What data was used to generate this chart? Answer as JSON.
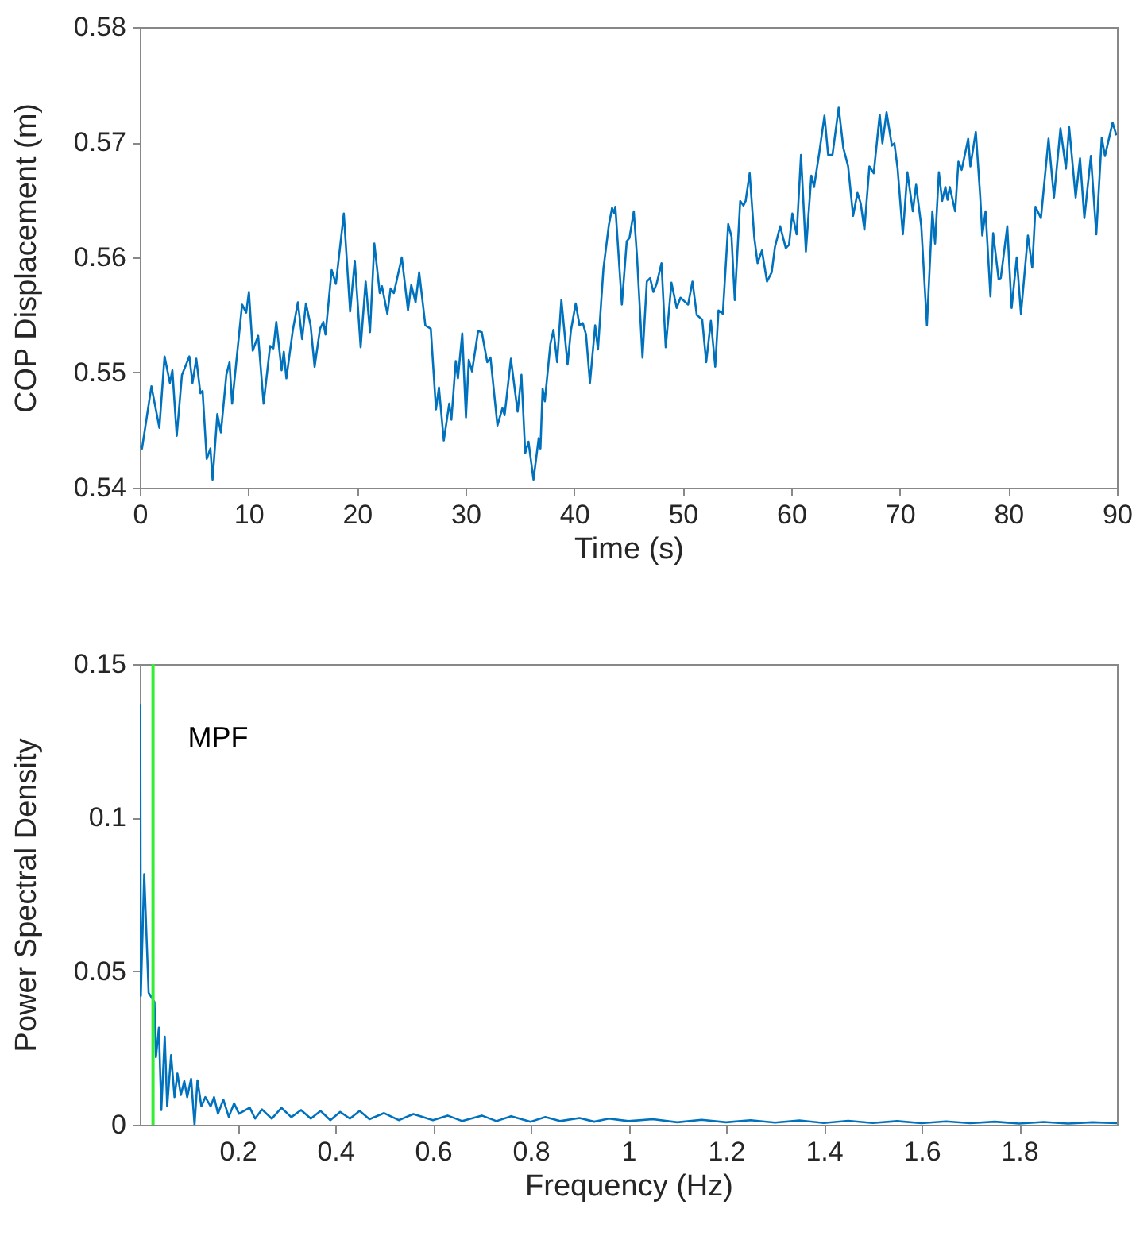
{
  "chart_data": [
    {
      "type": "line",
      "xlabel": "Time (s)",
      "ylabel": "COP Displacement (m)",
      "xlim": [
        0,
        90
      ],
      "ylim": [
        0.54,
        0.58
      ],
      "xticks": [
        0,
        10,
        20,
        30,
        40,
        50,
        60,
        70,
        80,
        90
      ],
      "yticks": [
        0.54,
        0.55,
        0.56,
        0.57,
        0.58
      ],
      "series": [
        {
          "color": "#0072bd",
          "x": [
            0.1,
            0.2,
            1.07,
            1.8,
            2.28,
            2.77,
            3.0,
            3.4,
            3.88,
            4.56,
            4.85,
            5.2,
            5.58,
            5.78,
            6.16,
            6.5,
            6.7,
            7.14,
            7.47,
            7.97,
            8.26,
            8.5,
            8.98,
            9.42,
            9.8,
            10.05,
            10.4,
            10.9,
            11.4,
            12.0,
            12.3,
            12.57,
            13.06,
            13.26,
            13.5,
            14.08,
            14.56,
            14.95,
            15.3,
            15.73,
            16.1,
            16.6,
            16.9,
            17.1,
            17.67,
            18.06,
            18.79,
            19.37,
            19.8,
            20.34,
            20.8,
            21.2,
            21.6,
            22.1,
            22.3,
            22.8,
            23.1,
            23.4,
            24.13,
            24.7,
            25.0,
            25.4,
            25.73,
            26.3,
            26.8,
            27.28,
            27.55,
            28.0,
            28.5,
            28.7,
            29.1,
            29.3,
            29.7,
            30.04,
            30.3,
            30.6,
            31.16,
            31.5,
            32.0,
            32.3,
            32.94,
            33.4,
            33.6,
            34.18,
            34.8,
            35.15,
            35.5,
            35.8,
            36.26,
            36.74,
            36.9,
            37.1,
            37.3,
            37.82,
            38.1,
            38.44,
            38.83,
            39.4,
            39.7,
            40.15,
            40.5,
            40.8,
            41.1,
            41.46,
            41.94,
            42.2,
            42.7,
            43.2,
            43.5,
            43.7,
            43.8,
            44.4,
            44.85,
            45.1,
            45.5,
            45.8,
            46.3,
            46.7,
            47.0,
            47.3,
            47.6,
            48.05,
            48.44,
            48.97,
            49.45,
            49.8,
            50.5,
            50.9,
            51.3,
            51.8,
            52.17,
            52.6,
            53.0,
            53.3,
            53.7,
            54.2,
            54.5,
            54.8,
            55.3,
            55.6,
            55.8,
            56.17,
            56.6,
            56.9,
            57.3,
            57.77,
            58.2,
            58.5,
            58.98,
            59.5,
            59.8,
            60.1,
            60.5,
            60.9,
            61.35,
            61.85,
            62.1,
            62.57,
            63.06,
            63.4,
            63.8,
            64.37,
            64.8,
            65.24,
            65.7,
            66.1,
            66.4,
            66.74,
            67.2,
            67.6,
            68.15,
            68.4,
            68.78,
            69.27,
            69.5,
            69.8,
            70.28,
            70.7,
            71.2,
            71.5,
            71.98,
            72.5,
            73.0,
            73.25,
            73.6,
            73.9,
            74.2,
            74.4,
            74.6,
            75.1,
            75.4,
            75.7,
            76.3,
            76.5,
            77.0,
            77.4,
            77.6,
            77.9,
            78.35,
            78.6,
            79.1,
            79.3,
            79.9,
            80.3,
            80.77,
            81.16,
            81.8,
            82.2,
            82.5,
            83.0,
            83.7,
            84.2,
            84.8,
            85.3,
            85.6,
            86.2,
            86.6,
            87.0,
            87.6,
            88.1,
            88.6,
            88.9,
            89.6,
            89.95
          ],
          "values": [
            0.5436,
            0.5434,
            0.5488,
            0.5452,
            0.5514,
            0.5491,
            0.5502,
            0.5445,
            0.5498,
            0.5514,
            0.5491,
            0.5512,
            0.5482,
            0.5484,
            0.5425,
            0.5434,
            0.5407,
            0.5464,
            0.5448,
            0.5498,
            0.5509,
            0.5473,
            0.5518,
            0.5559,
            0.5552,
            0.557,
            0.5519,
            0.5532,
            0.5473,
            0.5523,
            0.5521,
            0.5544,
            0.5502,
            0.5518,
            0.5495,
            0.5536,
            0.5561,
            0.5529,
            0.556,
            0.5541,
            0.5505,
            0.5538,
            0.5544,
            0.5533,
            0.5589,
            0.5577,
            0.5638,
            0.5553,
            0.5597,
            0.5522,
            0.5579,
            0.5535,
            0.5612,
            0.5569,
            0.5575,
            0.5551,
            0.5573,
            0.5569,
            0.56,
            0.5554,
            0.5576,
            0.5561,
            0.5587,
            0.5541,
            0.5538,
            0.5468,
            0.5487,
            0.5441,
            0.5473,
            0.5459,
            0.551,
            0.5495,
            0.5534,
            0.5461,
            0.5511,
            0.5501,
            0.5536,
            0.5535,
            0.5509,
            0.5513,
            0.5454,
            0.5469,
            0.5463,
            0.5512,
            0.5466,
            0.5498,
            0.543,
            0.544,
            0.5407,
            0.5443,
            0.5434,
            0.5486,
            0.5475,
            0.5525,
            0.5537,
            0.5509,
            0.5563,
            0.5507,
            0.5536,
            0.556,
            0.5541,
            0.5543,
            0.5533,
            0.5491,
            0.5541,
            0.552,
            0.559,
            0.5628,
            0.5643,
            0.5638,
            0.5644,
            0.5559,
            0.5614,
            0.5617,
            0.564,
            0.56,
            0.5513,
            0.5579,
            0.5582,
            0.557,
            0.5577,
            0.5595,
            0.5522,
            0.5578,
            0.5556,
            0.5565,
            0.5559,
            0.5579,
            0.555,
            0.5546,
            0.5509,
            0.5545,
            0.5505,
            0.5554,
            0.5551,
            0.5629,
            0.5618,
            0.5563,
            0.5649,
            0.5645,
            0.5649,
            0.5673,
            0.5617,
            0.5595,
            0.5606,
            0.5579,
            0.5587,
            0.5609,
            0.5627,
            0.5608,
            0.5611,
            0.5638,
            0.562,
            0.5689,
            0.5605,
            0.5671,
            0.5661,
            0.569,
            0.5723,
            0.5689,
            0.5689,
            0.573,
            0.5695,
            0.5679,
            0.5636,
            0.5656,
            0.5647,
            0.5624,
            0.5679,
            0.5673,
            0.5724,
            0.5699,
            0.5726,
            0.5697,
            0.5699,
            0.5677,
            0.562,
            0.5674,
            0.564,
            0.5663,
            0.5627,
            0.5541,
            0.564,
            0.5612,
            0.5674,
            0.5649,
            0.5661,
            0.565,
            0.5661,
            0.564,
            0.5683,
            0.5676,
            0.5703,
            0.5679,
            0.5709,
            0.5654,
            0.5619,
            0.564,
            0.5566,
            0.5621,
            0.5581,
            0.5582,
            0.5627,
            0.5556,
            0.56,
            0.5551,
            0.5619,
            0.5591,
            0.5644,
            0.5634,
            0.5703,
            0.5652,
            0.5712,
            0.5677,
            0.5713,
            0.5652,
            0.5686,
            0.5634,
            0.5688,
            0.562,
            0.5704,
            0.5688,
            0.5717,
            0.5706
          ]
        }
      ]
    },
    {
      "type": "line",
      "xlabel": "Frequency (Hz)",
      "ylabel": "Power Spectral Density",
      "xlim": [
        0,
        2
      ],
      "ylim": [
        0,
        0.15
      ],
      "xticks": [
        0.2,
        0.4,
        0.6,
        0.8,
        1,
        1.2,
        1.4,
        1.6,
        1.8
      ],
      "yticks": [
        0,
        0.05,
        0.1,
        0.15
      ],
      "ref_lines": [
        {
          "axis": "x",
          "value": 0.027,
          "label": "MPF",
          "color": "#33ee33"
        }
      ],
      "series": [
        {
          "color": "#0072bd",
          "x": [
            0.001,
            0.002,
            0.009,
            0.018,
            0.03,
            0.033,
            0.039,
            0.044,
            0.051,
            0.056,
            0.064,
            0.071,
            0.077,
            0.084,
            0.091,
            0.097,
            0.105,
            0.112,
            0.118,
            0.126,
            0.134,
            0.145,
            0.152,
            0.16,
            0.171,
            0.182,
            0.193,
            0.203,
            0.225,
            0.236,
            0.25,
            0.27,
            0.29,
            0.31,
            0.33,
            0.35,
            0.37,
            0.39,
            0.41,
            0.43,
            0.45,
            0.47,
            0.5,
            0.53,
            0.56,
            0.6,
            0.63,
            0.66,
            0.7,
            0.73,
            0.76,
            0.8,
            0.83,
            0.86,
            0.9,
            0.93,
            0.96,
            1.0,
            1.05,
            1.1,
            1.15,
            1.2,
            1.25,
            1.3,
            1.35,
            1.4,
            1.45,
            1.5,
            1.55,
            1.6,
            1.65,
            1.7,
            1.75,
            1.8,
            1.85,
            1.9,
            1.95,
            2.0
          ],
          "values": [
            0.137,
            0.042,
            0.0816,
            0.043,
            0.04,
            0.022,
            0.0316,
            0.0048,
            0.0287,
            0.006,
            0.0227,
            0.009,
            0.0167,
            0.0097,
            0.0142,
            0.009,
            0.015,
            0,
            0.0145,
            0.006,
            0.009,
            0.006,
            0.009,
            0.0036,
            0.0082,
            0.0026,
            0.007,
            0.0036,
            0.0056,
            0.002,
            0.005,
            0.002,
            0.0055,
            0.0025,
            0.0048,
            0.002,
            0.0045,
            0.0015,
            0.0042,
            0.002,
            0.0045,
            0.0018,
            0.0038,
            0.0015,
            0.0035,
            0.0015,
            0.003,
            0.0012,
            0.003,
            0.0012,
            0.0028,
            0.001,
            0.0025,
            0.0012,
            0.0022,
            0.001,
            0.002,
            0.0012,
            0.0018,
            0.0008,
            0.0016,
            0.0008,
            0.0015,
            0.0007,
            0.0014,
            0.0006,
            0.0013,
            0.0006,
            0.0012,
            0.0005,
            0.0011,
            0.0005,
            0.001,
            0.0004,
            0.0009,
            0.0004,
            0.0008,
            0.0005
          ]
        }
      ]
    }
  ]
}
